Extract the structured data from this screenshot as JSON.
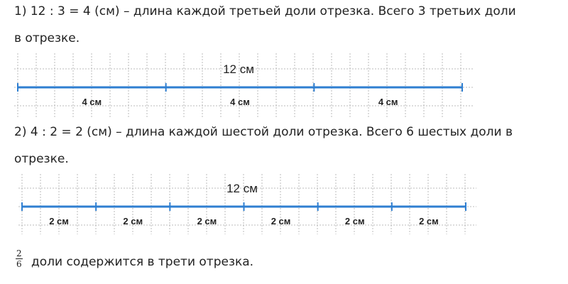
{
  "step1": {
    "line1": "1) 12 : 3 = 4 (см) – длина каждой третьей доли отрезка. Всего 3 третьих доли",
    "line2": "в отрезке."
  },
  "diagram1": {
    "total": "12 см",
    "parts": [
      "4 см",
      "4 см",
      "4 см"
    ]
  },
  "step2": {
    "line1": "2) 4 : 2 = 2 (см) – длина каждой шестой доли отрезка. Всего 6 шестых доли в",
    "line2": "отрезке."
  },
  "diagram2": {
    "total": "12 см",
    "parts": [
      "2 см",
      "2 см",
      "2 см",
      "2 см",
      "2 см",
      "2 см"
    ]
  },
  "conclusion": {
    "numerator": "2",
    "denominator": "6",
    "text": "доли содержится в трети отрезка."
  },
  "colors": {
    "segment": "#2f7fd1",
    "grid": "#bbbbbb"
  }
}
